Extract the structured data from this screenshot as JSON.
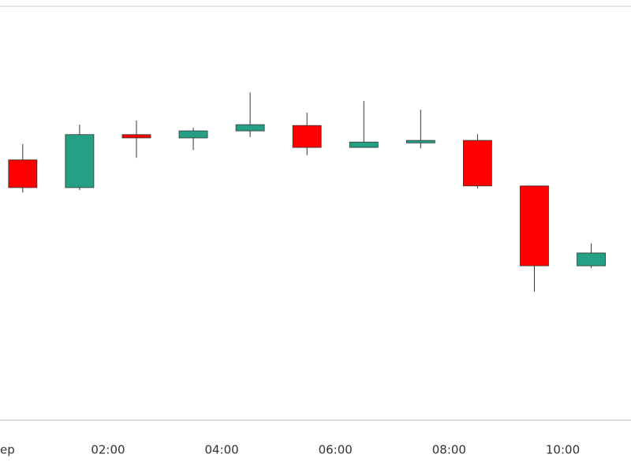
{
  "chart_data": {
    "type": "candlestick",
    "x": [
      0.5,
      1.5,
      2.5,
      3.5,
      4.5,
      5.5,
      6.5,
      7.5,
      8.5,
      9.5,
      10.5
    ],
    "open": [
      62.9,
      56.2,
      69.0,
      68.2,
      69.9,
      71.2,
      65.9,
      67.0,
      67.6,
      56.6,
      37.3
    ],
    "high": [
      66.7,
      71.4,
      72.4,
      70.7,
      79.2,
      74.3,
      77.1,
      75.0,
      69.1,
      56.6,
      42.7
    ],
    "low": [
      55.0,
      55.6,
      63.4,
      65.3,
      68.4,
      64.0,
      65.9,
      65.7,
      56.0,
      31.0,
      36.8
    ],
    "close": [
      56.2,
      69.0,
      68.2,
      69.9,
      71.4,
      65.9,
      67.2,
      67.6,
      56.6,
      37.3,
      40.4
    ],
    "up_color": "#26a085",
    "down_color": "#ff0000",
    "xlim": [
      0.1,
      11.2
    ],
    "ylim": [
      0,
      100
    ],
    "xticks": [
      {
        "value": 0,
        "label": "ep"
      },
      {
        "value": 2,
        "label": "02:00"
      },
      {
        "value": 4,
        "label": "04:00"
      },
      {
        "value": 6,
        "label": "06:00"
      },
      {
        "value": 8,
        "label": "08:00"
      },
      {
        "value": 10,
        "label": "10:00"
      }
    ]
  }
}
